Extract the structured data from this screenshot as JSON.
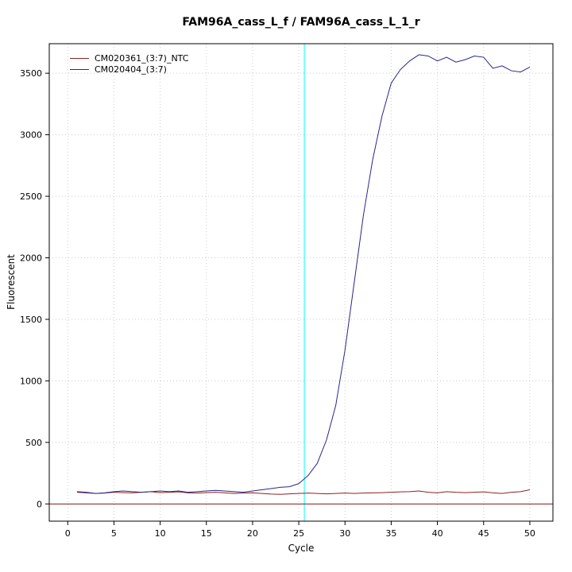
{
  "chart": {
    "title": "FAM96A_cass_L_f / FAM96A_cass_L_1_r",
    "xlabel": "Cycle",
    "ylabel": "Fluorescent"
  },
  "chart_data": {
    "type": "line",
    "title": "FAM96A_cass_L_f / FAM96A_cass_L_1_r",
    "xlabel": "Cycle",
    "ylabel": "Fluorescent",
    "xlim": [
      -2,
      52.5
    ],
    "ylim": [
      -140,
      3740
    ],
    "x_ticks": [
      0,
      5,
      10,
      15,
      20,
      25,
      30,
      35,
      40,
      45,
      50
    ],
    "y_ticks": [
      0,
      500,
      1000,
      1500,
      2000,
      2500,
      3000,
      3500
    ],
    "grid": true,
    "legend_position": "top-left",
    "threshold_vline": {
      "x": 25.6,
      "color": "#00ffff"
    },
    "baseline_hline": {
      "y": 0,
      "color": "#8b1a1a"
    },
    "x": [
      1,
      2,
      3,
      4,
      5,
      6,
      7,
      8,
      9,
      10,
      11,
      12,
      13,
      14,
      15,
      16,
      17,
      18,
      19,
      20,
      21,
      22,
      23,
      24,
      25,
      26,
      27,
      28,
      29,
      30,
      31,
      32,
      33,
      34,
      35,
      36,
      37,
      38,
      39,
      40,
      41,
      42,
      43,
      44,
      45,
      46,
      47,
      48,
      49,
      50
    ],
    "series": [
      {
        "name": "CM020361_(3:7)_NTC",
        "color": "#8b2222",
        "values": [
          95,
          90,
          85,
          88,
          95,
          92,
          90,
          95,
          100,
          92,
          95,
          98,
          90,
          88,
          92,
          95,
          90,
          85,
          88,
          90,
          85,
          80,
          78,
          82,
          85,
          88,
          85,
          82,
          85,
          88,
          85,
          88,
          90,
          92,
          95,
          98,
          100,
          105,
          95,
          90,
          100,
          95,
          92,
          95,
          98,
          90,
          85,
          95,
          100,
          115
        ]
      },
      {
        "name": "CM020404_(3:7)",
        "color": "#27278b",
        "values": [
          100,
          95,
          85,
          90,
          100,
          105,
          100,
          95,
          100,
          105,
          100,
          105,
          95,
          100,
          105,
          110,
          105,
          100,
          95,
          105,
          115,
          125,
          135,
          140,
          165,
          230,
          330,
          520,
          800,
          1250,
          1800,
          2350,
          2800,
          3150,
          3420,
          3530,
          3600,
          3650,
          3640,
          3600,
          3630,
          3590,
          3610,
          3640,
          3630,
          3540,
          3560,
          3520,
          3510,
          3550
        ]
      }
    ]
  }
}
